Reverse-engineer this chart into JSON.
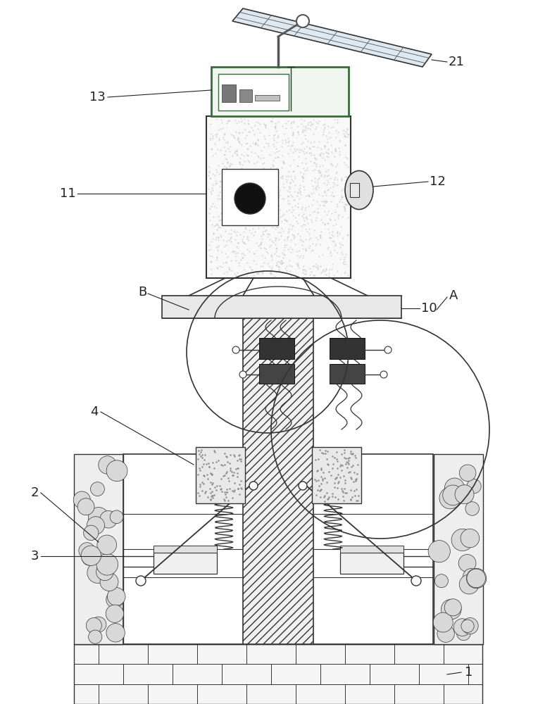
{
  "fig_width": 7.91,
  "fig_height": 10.0,
  "dpi": 100,
  "bg_color": "#ffffff",
  "lc": "#333333",
  "label_fs": 13
}
